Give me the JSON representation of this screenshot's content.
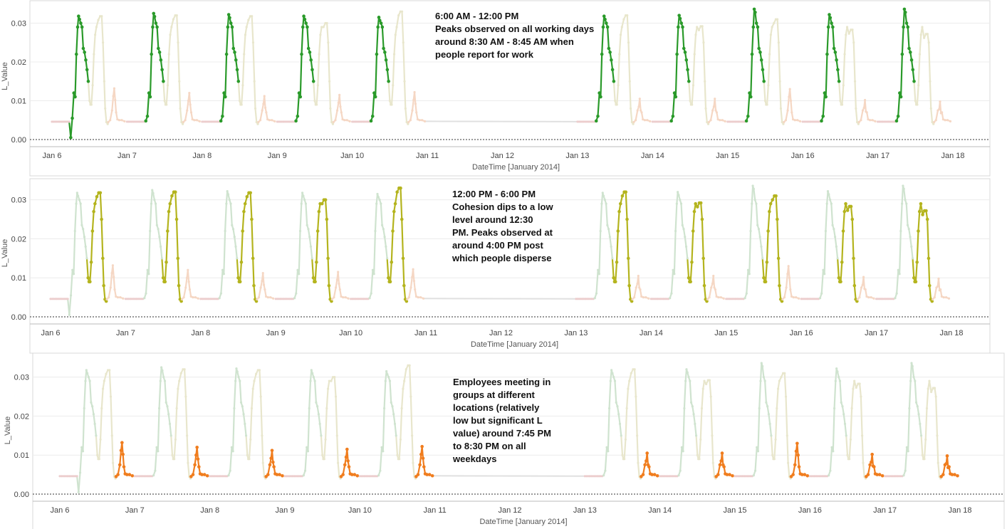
{
  "colors": {
    "morning": "#2a9a2a",
    "afternoon": "#b4b41e",
    "evening": "#f07d1e",
    "morning_faded": "#cfe3cf",
    "afternoon_faded": "#e8e6cc",
    "evening_faded": "#f5d7c4",
    "night_faded": "#eccdcd",
    "gap_line": "#e0e0e0"
  },
  "chart_data": [
    {
      "type": "scatter",
      "title": "",
      "xlabel": "DateTime [January 2014]",
      "ylabel": "L_Value",
      "x_range_days": [
        5.6,
        18.4
      ],
      "ylim": [
        -0.002,
        0.0345
      ],
      "yticks": [
        0.0,
        0.01,
        0.02,
        0.03
      ],
      "ytick_labels": [
        "0.00",
        "0.01",
        "0.02",
        "0.03"
      ],
      "xticks": [
        6,
        7,
        8,
        9,
        10,
        11,
        12,
        13,
        14,
        15,
        16,
        17,
        18
      ],
      "xtick_labels": [
        "Jan 6",
        "Jan 7",
        "Jan 8",
        "Jan 9",
        "Jan 10",
        "Jan 11",
        "Jan 12",
        "Jan 13",
        "Jan 14",
        "Jan 15",
        "Jan 16",
        "Jan 17",
        "Jan 18"
      ],
      "highlight_window": "6:00 AM - 12:00 PM",
      "days": [
        6,
        7,
        8,
        9,
        10,
        13,
        14,
        15,
        16,
        17
      ],
      "morning_peaks": [
        0.0318,
        0.0325,
        0.0322,
        0.0318,
        0.0315,
        0.0318,
        0.032,
        0.0336,
        0.0322,
        0.0336
      ],
      "afternoon_peaks": [
        0.0318,
        0.032,
        0.0318,
        0.03,
        0.033,
        0.032,
        0.0292,
        0.031,
        0.0283,
        0.0272
      ],
      "evening_peaks": [
        0.0132,
        0.012,
        0.0112,
        0.0115,
        0.0122,
        0.0105,
        0.0105,
        0.013,
        0.0102,
        0.0098
      ],
      "annotation": [
        "6:00 AM - 12:00 PM",
        "Peaks observed on all working days",
        "around 8:30 AM - 8:45 AM when",
        "people report for work"
      ]
    },
    {
      "type": "scatter",
      "title": "",
      "xlabel": "DateTime [January 2014]",
      "ylabel": "L_Value",
      "x_range_days": [
        5.6,
        18.4
      ],
      "ylim": [
        -0.002,
        0.0345
      ],
      "yticks": [
        0.0,
        0.01,
        0.02,
        0.03
      ],
      "ytick_labels": [
        "0.00",
        "0.01",
        "0.02",
        "0.03"
      ],
      "xticks": [
        6,
        7,
        8,
        9,
        10,
        11,
        12,
        13,
        14,
        15,
        16,
        17,
        18
      ],
      "xtick_labels": [
        "Jan 6",
        "Jan 7",
        "Jan 8",
        "Jan 9",
        "Jan 10",
        "Jan 11",
        "Jan 12",
        "Jan 13",
        "Jan 14",
        "Jan 15",
        "Jan 16",
        "Jan 17",
        "Jan 18"
      ],
      "highlight_window": "12:00 PM - 6:00 PM",
      "days": [
        6,
        7,
        8,
        9,
        10,
        13,
        14,
        15,
        16,
        17
      ],
      "morning_peaks": [
        0.0318,
        0.0325,
        0.0322,
        0.0318,
        0.0315,
        0.0318,
        0.032,
        0.0336,
        0.0322,
        0.0336
      ],
      "afternoon_peaks": [
        0.0318,
        0.032,
        0.0318,
        0.03,
        0.033,
        0.032,
        0.0292,
        0.031,
        0.0283,
        0.0272
      ],
      "evening_peaks": [
        0.0132,
        0.012,
        0.0112,
        0.0115,
        0.0122,
        0.0105,
        0.0105,
        0.013,
        0.0102,
        0.0098
      ],
      "annotation": [
        "12:00 PM - 6:00 PM",
        "Cohesion dips to a low",
        "level around 12:30",
        "PM. Peaks observed at",
        "around 4:00 PM post",
        "which people disperse"
      ]
    },
    {
      "type": "scatter",
      "title": "",
      "xlabel": "DateTime [January 2014]",
      "ylabel": "L_Value",
      "x_range_days": [
        5.6,
        18.4
      ],
      "ylim": [
        -0.002,
        0.0345
      ],
      "yticks": [
        0.0,
        0.01,
        0.02,
        0.03
      ],
      "ytick_labels": [
        "0.00",
        "0.01",
        "0.02",
        "0.03"
      ],
      "xticks": [
        6,
        7,
        8,
        9,
        10,
        11,
        12,
        13,
        14,
        15,
        16,
        17,
        18
      ],
      "xtick_labels": [
        "Jan 6",
        "Jan 7",
        "Jan 8",
        "Jan 9",
        "Jan 10",
        "Jan 11",
        "Jan 12",
        "Jan 13",
        "Jan 14",
        "Jan 15",
        "Jan 16",
        "Jan 17",
        "Jan 18"
      ],
      "highlight_window": "evening",
      "days": [
        6,
        7,
        8,
        9,
        10,
        13,
        14,
        15,
        16,
        17
      ],
      "morning_peaks": [
        0.0318,
        0.0325,
        0.0322,
        0.0318,
        0.0315,
        0.0318,
        0.032,
        0.0336,
        0.0322,
        0.0336
      ],
      "afternoon_peaks": [
        0.0318,
        0.032,
        0.0318,
        0.03,
        0.033,
        0.032,
        0.0292,
        0.031,
        0.0283,
        0.0272
      ],
      "evening_peaks": [
        0.0132,
        0.012,
        0.0112,
        0.0115,
        0.0122,
        0.0105,
        0.0105,
        0.013,
        0.0102,
        0.0098
      ],
      "annotation": [
        "Employees meeting in",
        "groups at different",
        "locations (relatively",
        "low but significant L",
        "value) around 7:45 PM",
        "to 8:30 PM on all",
        "weekdays"
      ]
    }
  ]
}
